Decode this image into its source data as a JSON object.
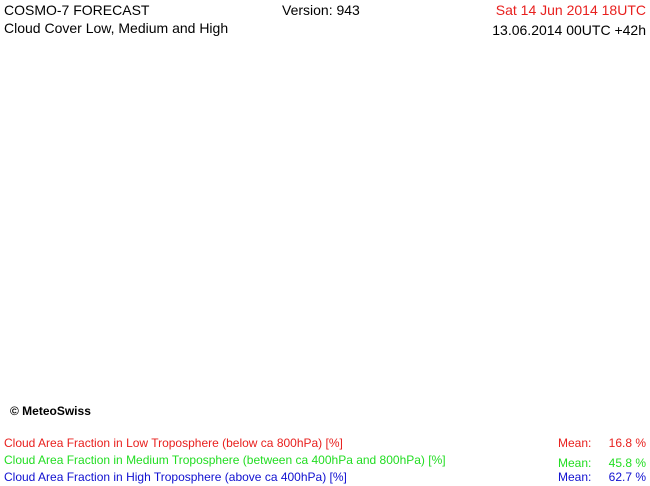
{
  "header": {
    "product": "COSMO-7 FORECAST",
    "subtitle": "Cloud Cover Low, Medium and High",
    "version": "Version: 943",
    "valid_time": "Sat 14 Jun 2014 18UTC",
    "run_time": "13.06.2014 00UTC +42h"
  },
  "map": {
    "credit": "© MeteoSwiss"
  },
  "legend": [
    {
      "label": "Cloud Area Fraction in Low Troposphere (below ca 800hPa) [%]",
      "mean_label": "Mean:",
      "mean": "16.8 %"
    },
    {
      "label": "Cloud Area Fraction in Medium Troposphere (between ca 400hPa and 800hPa) [%]",
      "mean_label": "Mean:",
      "mean": "45.8 %"
    },
    {
      "label": "Cloud Area Fraction in High Troposphere (above ca 400hPa) [%]",
      "mean_label": "Mean:",
      "mean": "62.7 %"
    }
  ]
}
